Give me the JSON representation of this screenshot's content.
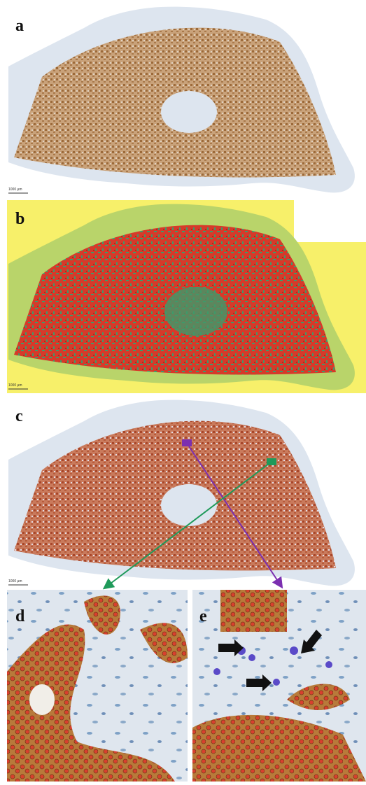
{
  "panels": [
    {
      "label": "a",
      "scale": "1000 µm"
    },
    {
      "label": "b",
      "scale": "1000 µm"
    },
    {
      "label": "c",
      "scale": "1000 µm"
    },
    {
      "label": "d"
    },
    {
      "label": "e"
    }
  ]
}
